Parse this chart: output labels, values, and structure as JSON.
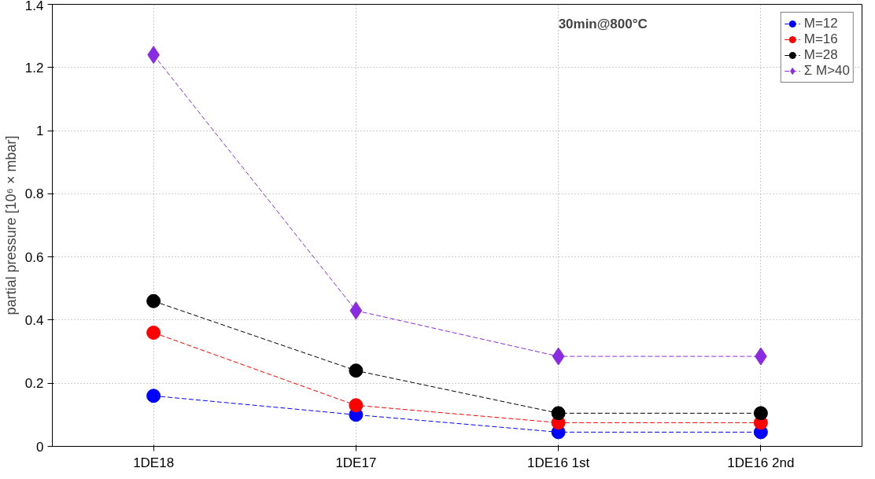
{
  "chart_data": {
    "type": "line",
    "ylabel": "partial pressure [10⁶ × mbar]",
    "categories": [
      "1DE18",
      "1DE17",
      "1DE16 1st",
      "1DE16 2nd"
    ],
    "ylim": [
      0,
      1.4
    ],
    "yticks": [
      0,
      0.2,
      0.4,
      0.6,
      0.8,
      1,
      1.2,
      1.4
    ],
    "grid": true,
    "legend": "top right",
    "line_style": "dashed",
    "annotations": [
      "30min@800°C"
    ],
    "series": [
      {
        "name": "M=12",
        "color": "#0000ff",
        "marker": "circle",
        "values": [
          0.16,
          0.1,
          0.045,
          0.045
        ]
      },
      {
        "name": "M=16",
        "color": "#ff0000",
        "marker": "circle",
        "values": [
          0.36,
          0.13,
          0.075,
          0.075
        ]
      },
      {
        "name": "M=28",
        "color": "#000000",
        "marker": "circle",
        "values": [
          0.46,
          0.24,
          0.105,
          0.105
        ]
      },
      {
        "name": "Σ M>40",
        "color": "#8a2be2",
        "marker": "diamond",
        "values": [
          1.24,
          0.43,
          0.285,
          0.285
        ]
      }
    ]
  }
}
